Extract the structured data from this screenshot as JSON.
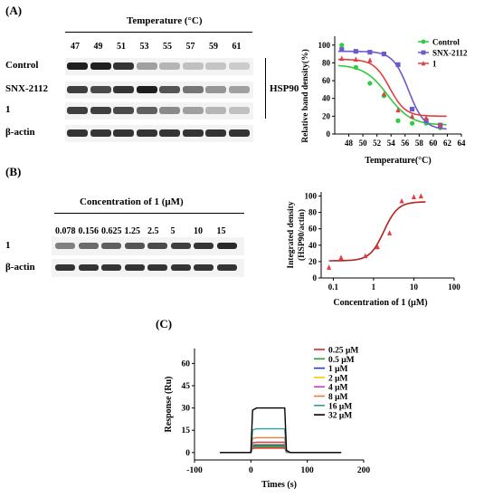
{
  "panelA": {
    "label": "(A)",
    "temperature_header": "Temperature (°C)",
    "temps": [
      "47",
      "49",
      "51",
      "53",
      "55",
      "57",
      "59",
      "61"
    ],
    "rows": [
      "Control",
      "SNX-2112",
      "1",
      "β-actin"
    ],
    "bracket_label": "HSP90",
    "band_intensity": {
      "Control": [
        0.95,
        0.95,
        0.85,
        0.35,
        0.25,
        0.2,
        0.18,
        0.15
      ],
      "SNX-2112": [
        0.8,
        0.75,
        0.85,
        0.95,
        0.7,
        0.55,
        0.4,
        0.35
      ],
      "1": [
        0.8,
        0.8,
        0.75,
        0.65,
        0.45,
        0.35,
        0.25,
        0.2
      ],
      "β-actin": [
        0.85,
        0.85,
        0.85,
        0.85,
        0.85,
        0.85,
        0.85,
        0.85
      ]
    }
  },
  "panelB": {
    "label": "(B)",
    "conc_header": "Concentration of 1 (μM)",
    "concs": [
      "0.078",
      "0.156",
      "0.625",
      "1.25",
      "2.5",
      "5",
      "10",
      "15"
    ],
    "rows": [
      "1",
      "β-actin"
    ],
    "band_intensity": {
      "1": [
        0.5,
        0.6,
        0.65,
        0.7,
        0.75,
        0.8,
        0.85,
        0.9
      ],
      "β-actin": [
        0.85,
        0.85,
        0.85,
        0.85,
        0.85,
        0.85,
        0.85,
        0.85
      ]
    }
  },
  "panelC": {
    "label": "(C)"
  },
  "chart_data": [
    {
      "type": "scatter",
      "title": "",
      "xlabel": "Temperature(°C)",
      "ylabel": "Relative band density(%)",
      "xlim": [
        46,
        64
      ],
      "ylim": [
        0,
        110
      ],
      "xticks": [
        48,
        50,
        52,
        54,
        56,
        58,
        60,
        62,
        64
      ],
      "yticks": [
        0,
        20,
        40,
        60,
        80,
        100
      ],
      "legend_position": "top-right",
      "series": [
        {
          "name": "Control",
          "color": "#2ecc40",
          "marker": "circle",
          "x": [
            47,
            49,
            51,
            53,
            55,
            57,
            59,
            61
          ],
          "y": [
            100,
            75,
            57,
            43,
            15,
            12,
            12,
            7
          ],
          "fit": {
            "top": 78,
            "bottom": 10,
            "ec50": 53.5,
            "slope": 0.6
          }
        },
        {
          "name": "SNX-2112",
          "color": "#6a5acd",
          "marker": "square",
          "x": [
            47,
            49,
            51,
            53,
            55,
            57,
            59,
            61
          ],
          "y": [
            95,
            93,
            92,
            90,
            78,
            28,
            15,
            10
          ],
          "fit": {
            "top": 93,
            "bottom": 5,
            "ec50": 56.5,
            "slope": 0.9
          }
        },
        {
          "name": "1",
          "color": "#e04040",
          "marker": "triangle",
          "x": [
            47,
            49,
            51,
            53,
            55,
            57,
            59,
            61
          ],
          "y": [
            85,
            84,
            83,
            45,
            27,
            20,
            18,
            10
          ],
          "fit": {
            "top": 84,
            "bottom": 20,
            "ec50": 53.8,
            "slope": 0.9
          }
        }
      ]
    },
    {
      "type": "scatter",
      "title": "",
      "xlabel": "Concentration of 1 (μM)",
      "ylabel": "Integrated density (HSP90/actin)",
      "xscale": "log",
      "xlim": [
        0.05,
        100
      ],
      "ylim": [
        0,
        105
      ],
      "xticks": [
        0.1,
        1,
        10,
        100
      ],
      "xtick_labels": [
        "0.1",
        "1",
        "10",
        "100"
      ],
      "yticks": [
        0,
        20,
        40,
        60,
        80,
        100
      ],
      "series": [
        {
          "name": "",
          "color": "#e04040",
          "marker": "triangle",
          "x": [
            0.078,
            0.156,
            0.625,
            1.25,
            2.5,
            5,
            10,
            15
          ],
          "y": [
            13,
            25,
            27,
            38,
            55,
            94,
            99,
            100
          ],
          "fit": {
            "top": 93,
            "bottom": 21,
            "ec50": 1.8,
            "slope": 2.5
          }
        }
      ]
    },
    {
      "type": "line",
      "title": "",
      "xlabel": "Times (s)",
      "ylabel": "Response (Ru)",
      "xlim": [
        -100,
        200
      ],
      "ylim": [
        -5,
        70
      ],
      "xticks": [
        -100,
        0,
        100,
        200
      ],
      "yticks": [
        0,
        15,
        30,
        45,
        60
      ],
      "legend_position": "top-right",
      "injection": {
        "start": 0,
        "end": 60
      },
      "baseline_range": [
        -55,
        160
      ],
      "series": [
        {
          "name": "0.25 μM",
          "color": "#d62728",
          "plateau": 3
        },
        {
          "name": "0.5 μM",
          "color": "#2ca02c",
          "plateau": 4
        },
        {
          "name": "1 μM",
          "color": "#1f3fbf",
          "plateau": 5
        },
        {
          "name": "2 μM",
          "color": "#e6d200",
          "plateau": 6
        },
        {
          "name": "4 μM",
          "color": "#c040c0",
          "plateau": 7
        },
        {
          "name": "8 μM",
          "color": "#e0803a",
          "plateau": 10
        },
        {
          "name": "16 μM",
          "color": "#2aa0a0",
          "plateau": 16
        },
        {
          "name": "32 μM",
          "color": "#000000",
          "plateau": 30
        }
      ]
    }
  ]
}
